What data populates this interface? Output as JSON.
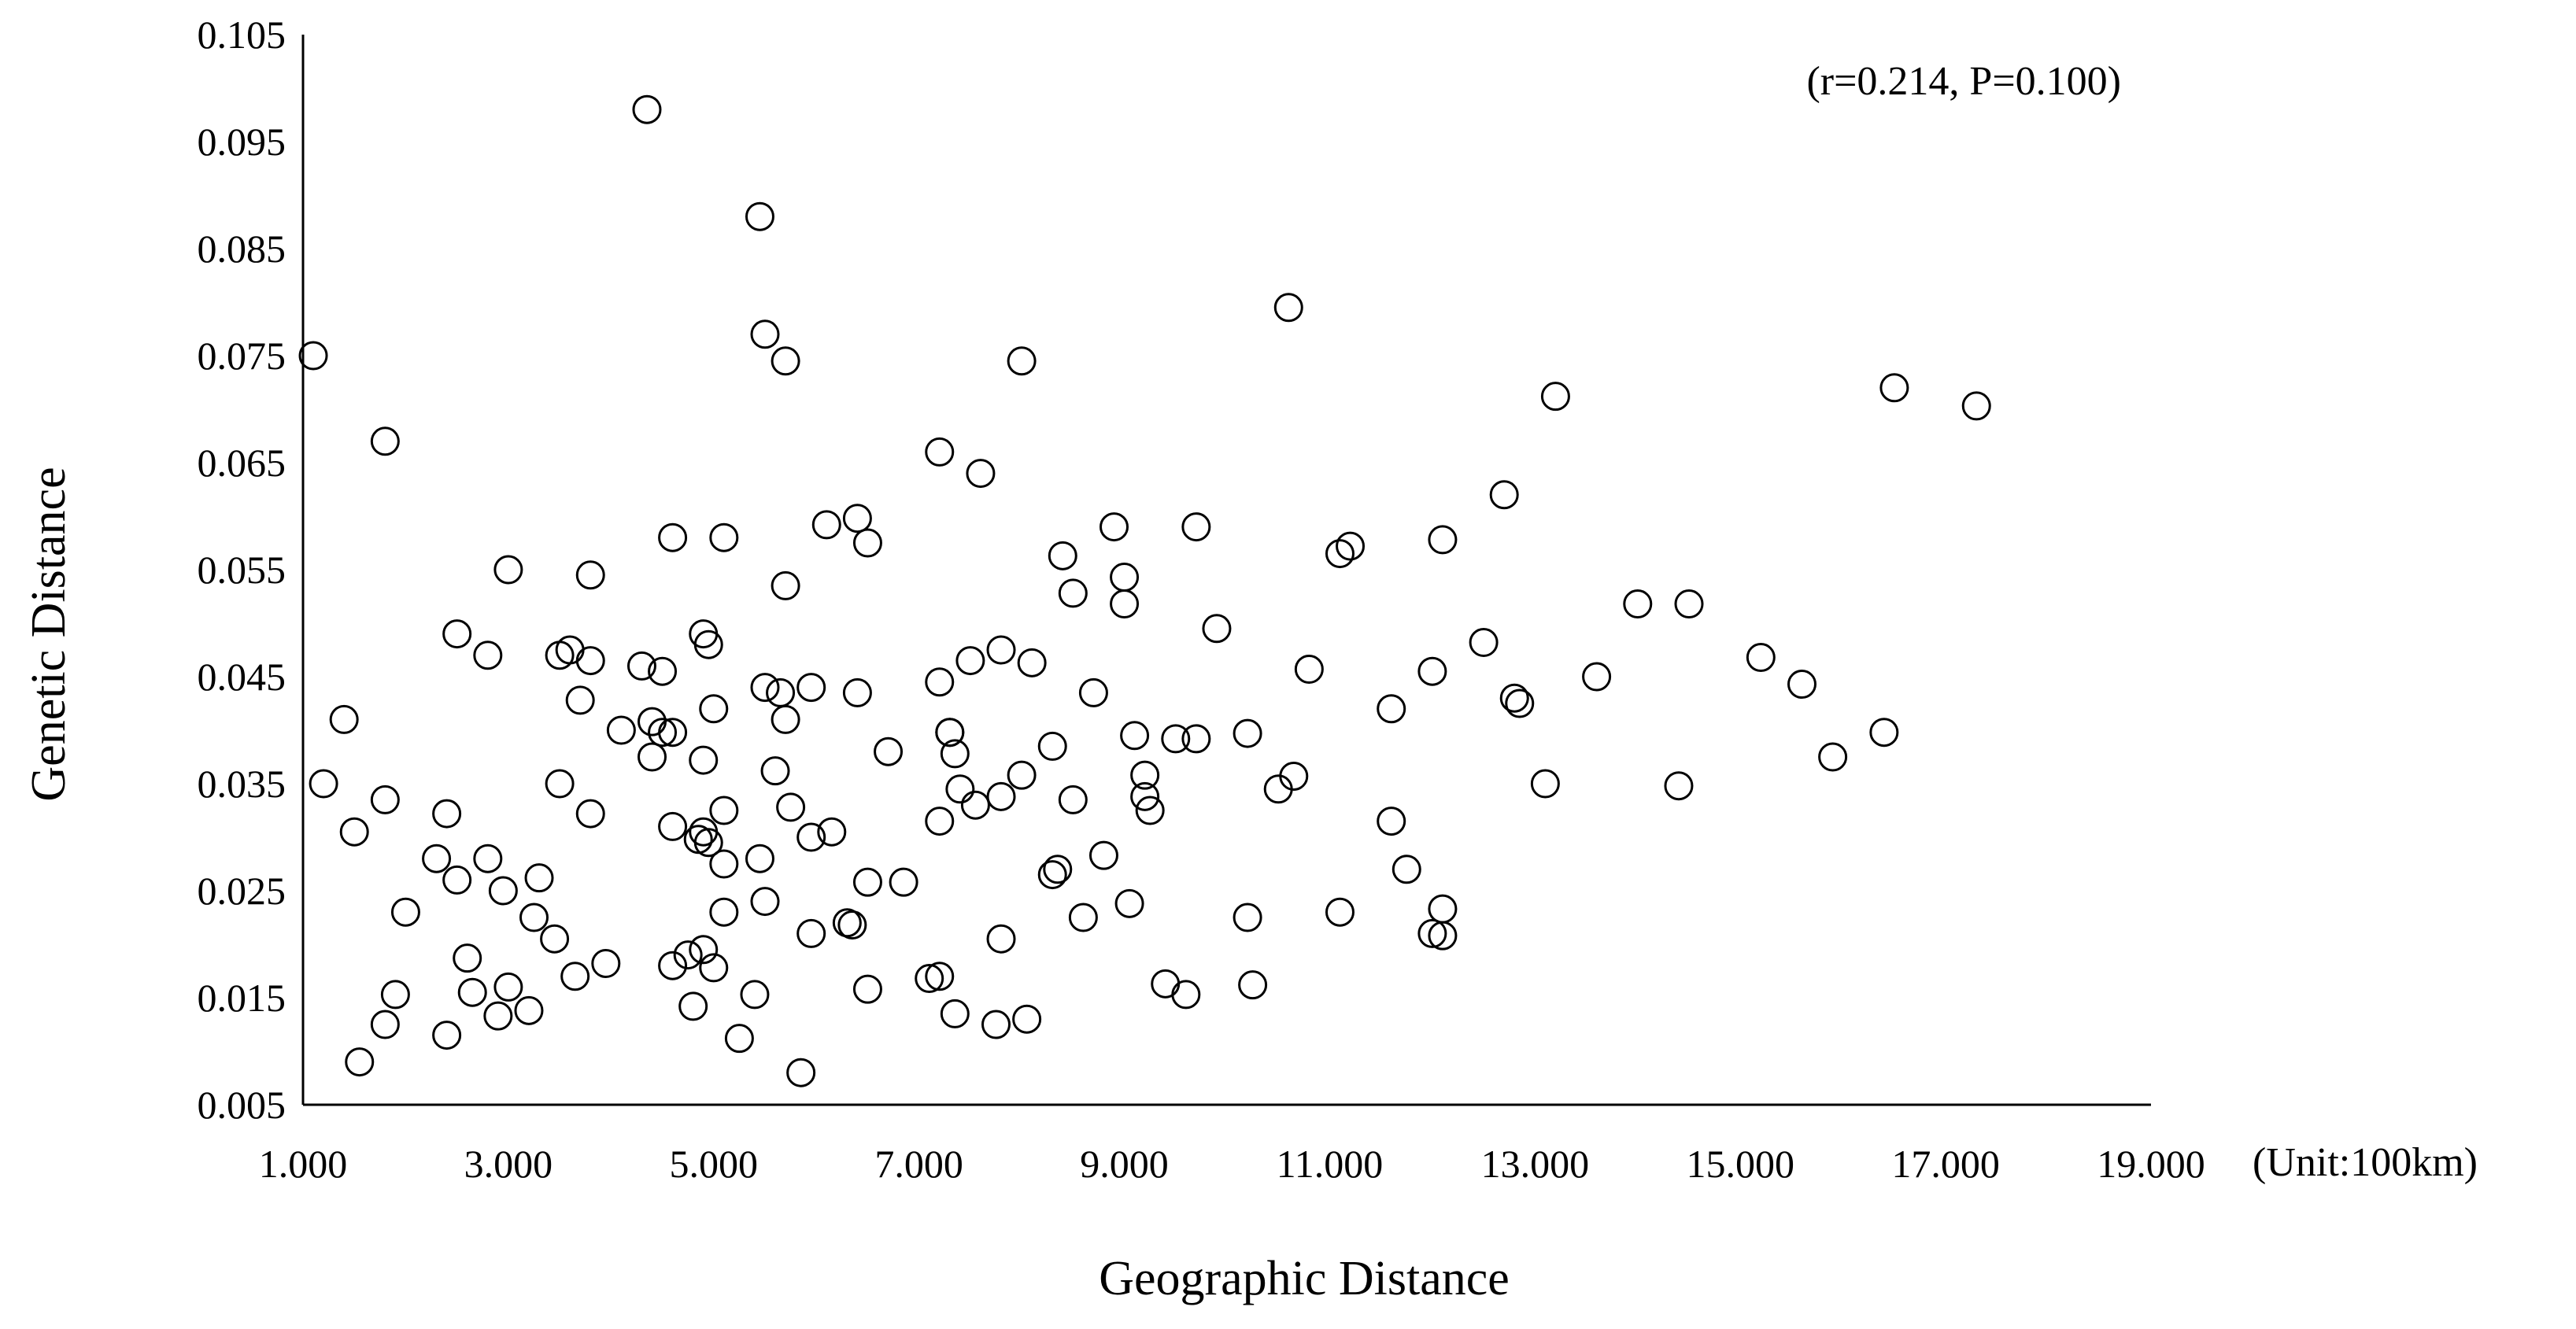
{
  "chart_data": {
    "type": "scatter",
    "title": "",
    "xlabel": "Geographic Distance",
    "ylabel": "Genetic Distance",
    "unit_label": "(Unit:100km)",
    "annotation": "(r=0.214, P=0.100)",
    "xlim": [
      1,
      19
    ],
    "ylim": [
      0.005,
      0.105
    ],
    "x_ticks": [
      "1.000",
      "3.000",
      "5.000",
      "7.000",
      "9.000",
      "11.000",
      "13.000",
      "15.000",
      "17.000",
      "19.000"
    ],
    "y_ticks": [
      "0.005",
      "0.015",
      "0.025",
      "0.035",
      "0.045",
      "0.055",
      "0.065",
      "0.075",
      "0.085",
      "0.095",
      "0.105"
    ],
    "grid": false,
    "marker": "open-circle",
    "marker_color": "#000000",
    "points": [
      [
        4.35,
        0.098
      ],
      [
        5.45,
        0.088
      ],
      [
        5.5,
        0.077
      ],
      [
        5.7,
        0.0745
      ],
      [
        8.0,
        0.0745
      ],
      [
        10.6,
        0.0795
      ],
      [
        1.1,
        0.075
      ],
      [
        1.8,
        0.067
      ],
      [
        13.2,
        0.0712
      ],
      [
        16.5,
        0.072
      ],
      [
        17.3,
        0.0703
      ],
      [
        7.2,
        0.066
      ],
      [
        7.6,
        0.064
      ],
      [
        12.7,
        0.062
      ],
      [
        6.1,
        0.0592
      ],
      [
        6.4,
        0.0598
      ],
      [
        6.5,
        0.0575
      ],
      [
        8.9,
        0.059
      ],
      [
        9.7,
        0.059
      ],
      [
        4.6,
        0.058
      ],
      [
        5.1,
        0.058
      ],
      [
        11.1,
        0.0565
      ],
      [
        11.2,
        0.0572
      ],
      [
        12.1,
        0.0578
      ],
      [
        3.0,
        0.055
      ],
      [
        3.8,
        0.0545
      ],
      [
        5.7,
        0.0535
      ],
      [
        8.4,
        0.0563
      ],
      [
        8.5,
        0.0528
      ],
      [
        9.0,
        0.0543
      ],
      [
        9.0,
        0.0518
      ],
      [
        9.9,
        0.0495
      ],
      [
        14.0,
        0.0518
      ],
      [
        14.5,
        0.0518
      ],
      [
        2.5,
        0.049
      ],
      [
        2.8,
        0.047
      ],
      [
        3.5,
        0.047
      ],
      [
        3.6,
        0.0475
      ],
      [
        3.8,
        0.0465
      ],
      [
        4.9,
        0.049
      ],
      [
        4.95,
        0.048
      ],
      [
        4.3,
        0.046
      ],
      [
        4.5,
        0.0455
      ],
      [
        7.5,
        0.0465
      ],
      [
        7.8,
        0.0475
      ],
      [
        8.1,
        0.0463
      ],
      [
        12.5,
        0.0482
      ],
      [
        15.2,
        0.0468
      ],
      [
        5.5,
        0.044
      ],
      [
        5.65,
        0.0435
      ],
      [
        5.95,
        0.044
      ],
      [
        6.4,
        0.0435
      ],
      [
        7.2,
        0.0445
      ],
      [
        8.7,
        0.0435
      ],
      [
        10.8,
        0.0457
      ],
      [
        12.0,
        0.0455
      ],
      [
        13.6,
        0.045
      ],
      [
        15.6,
        0.0443
      ],
      [
        1.4,
        0.041
      ],
      [
        3.7,
        0.0428
      ],
      [
        4.1,
        0.04
      ],
      [
        4.4,
        0.0408
      ],
      [
        4.5,
        0.0398
      ],
      [
        4.6,
        0.0398
      ],
      [
        5.0,
        0.042
      ],
      [
        5.7,
        0.041
      ],
      [
        7.3,
        0.0398
      ],
      [
        7.3,
        0.0398
      ],
      [
        9.1,
        0.0395
      ],
      [
        9.5,
        0.0392
      ],
      [
        9.7,
        0.0392
      ],
      [
        10.2,
        0.0397
      ],
      [
        11.6,
        0.042
      ],
      [
        12.8,
        0.043
      ],
      [
        12.85,
        0.0425
      ],
      [
        16.4,
        0.0398
      ],
      [
        1.2,
        0.035
      ],
      [
        1.8,
        0.0335
      ],
      [
        3.5,
        0.035
      ],
      [
        4.4,
        0.0375
      ],
      [
        4.9,
        0.0372
      ],
      [
        5.6,
        0.0362
      ],
      [
        6.7,
        0.038
      ],
      [
        7.35,
        0.0378
      ],
      [
        8.0,
        0.0358
      ],
      [
        8.3,
        0.0385
      ],
      [
        9.2,
        0.0358
      ],
      [
        10.5,
        0.0345
      ],
      [
        10.65,
        0.0357
      ],
      [
        13.1,
        0.035
      ],
      [
        14.4,
        0.0348
      ],
      [
        15.9,
        0.0375
      ],
      [
        1.5,
        0.0305
      ],
      [
        2.4,
        0.0322
      ],
      [
        3.8,
        0.0322
      ],
      [
        4.6,
        0.031
      ],
      [
        4.9,
        0.0305
      ],
      [
        4.85,
        0.0298
      ],
      [
        5.1,
        0.0325
      ],
      [
        5.75,
        0.0328
      ],
      [
        7.2,
        0.0315
      ],
      [
        7.4,
        0.0345
      ],
      [
        7.55,
        0.033
      ],
      [
        7.8,
        0.0338
      ],
      [
        8.5,
        0.0335
      ],
      [
        9.2,
        0.0338
      ],
      [
        9.25,
        0.0325
      ],
      [
        11.6,
        0.0315
      ],
      [
        2.3,
        0.028
      ],
      [
        2.5,
        0.026
      ],
      [
        2.8,
        0.028
      ],
      [
        2.95,
        0.025
      ],
      [
        3.3,
        0.0262
      ],
      [
        4.95,
        0.0295
      ],
      [
        5.1,
        0.0275
      ],
      [
        5.45,
        0.028
      ],
      [
        5.95,
        0.03
      ],
      [
        6.15,
        0.0305
      ],
      [
        6.5,
        0.0258
      ],
      [
        6.85,
        0.0258
      ],
      [
        8.3,
        0.0265
      ],
      [
        8.35,
        0.027
      ],
      [
        8.8,
        0.0283
      ],
      [
        11.75,
        0.027
      ],
      [
        2.0,
        0.023
      ],
      [
        3.25,
        0.0225
      ],
      [
        3.45,
        0.0205
      ],
      [
        5.1,
        0.023
      ],
      [
        5.5,
        0.024
      ],
      [
        5.95,
        0.021
      ],
      [
        6.3,
        0.022
      ],
      [
        6.35,
        0.0218
      ],
      [
        7.8,
        0.0205
      ],
      [
        8.6,
        0.0225
      ],
      [
        9.05,
        0.0238
      ],
      [
        10.2,
        0.0225
      ],
      [
        11.1,
        0.023
      ],
      [
        12.0,
        0.021
      ],
      [
        12.1,
        0.0233
      ],
      [
        12.1,
        0.0208
      ],
      [
        1.8,
        0.0125
      ],
      [
        1.9,
        0.0153
      ],
      [
        2.6,
        0.0187
      ],
      [
        2.65,
        0.0155
      ],
      [
        2.9,
        0.0133
      ],
      [
        3.0,
        0.016
      ],
      [
        3.2,
        0.0138
      ],
      [
        3.65,
        0.017
      ],
      [
        3.95,
        0.0182
      ],
      [
        4.6,
        0.018
      ],
      [
        4.75,
        0.019
      ],
      [
        4.8,
        0.0142
      ],
      [
        4.9,
        0.0195
      ],
      [
        5.0,
        0.0178
      ],
      [
        5.4,
        0.0153
      ],
      [
        6.5,
        0.0158
      ],
      [
        7.1,
        0.0168
      ],
      [
        7.2,
        0.017
      ],
      [
        9.4,
        0.0163
      ],
      [
        9.6,
        0.0153
      ],
      [
        10.25,
        0.0162
      ],
      [
        1.55,
        0.009
      ],
      [
        2.4,
        0.0115
      ],
      [
        5.25,
        0.0112
      ],
      [
        5.85,
        0.008
      ],
      [
        7.35,
        0.0135
      ],
      [
        7.75,
        0.0125
      ],
      [
        8.05,
        0.013
      ]
    ]
  }
}
